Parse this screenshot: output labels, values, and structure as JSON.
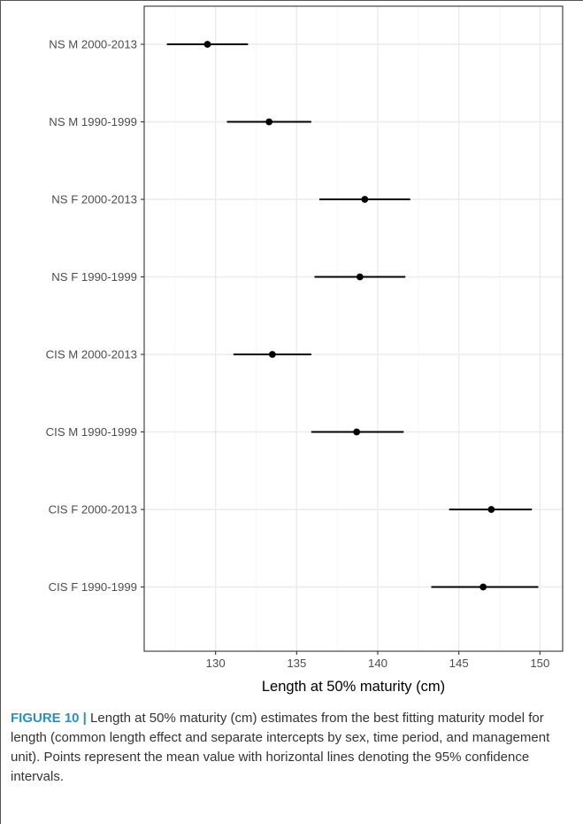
{
  "chart_data": {
    "type": "errorbar",
    "orientation": "horizontal",
    "xlabel": "Length at 50% maturity (cm)",
    "ylabel": "",
    "xlim": [
      125.6,
      151.4
    ],
    "x_ticks": [
      130,
      135,
      140,
      145,
      150
    ],
    "grid": true,
    "theme": "bw",
    "categories": [
      "NS M 2000-2013",
      "NS M 1990-1999",
      "NS F 2000-2013",
      "NS F 1990-1999",
      "CIS M 2000-2013",
      "CIS M 1990-1999",
      "CIS F 2000-2013",
      "CIS F 1990-1999"
    ],
    "series": [
      {
        "values": [
          129.5,
          133.3,
          139.2,
          138.9,
          133.5,
          138.7,
          147.0,
          146.5
        ],
        "lower": [
          127.0,
          130.7,
          136.4,
          136.1,
          131.1,
          135.9,
          144.4,
          143.3
        ],
        "upper": [
          132.0,
          135.9,
          142.0,
          141.7,
          135.9,
          141.6,
          149.5,
          149.9
        ]
      }
    ],
    "colors": {
      "point": "#000000",
      "errorbar": "#000000",
      "grid_major": "#ebebeb",
      "grid_minor": "#f5f5f5",
      "panel_border": "#333333"
    }
  },
  "caption": {
    "label": "FIGURE 10 |",
    "text": " Length at 50% maturity (cm) estimates from the best fitting maturity model for length (common length effect and separate intercepts by sex, time period, and management unit). Points represent the mean value with horizontal lines denoting the 95% confidence intervals."
  }
}
